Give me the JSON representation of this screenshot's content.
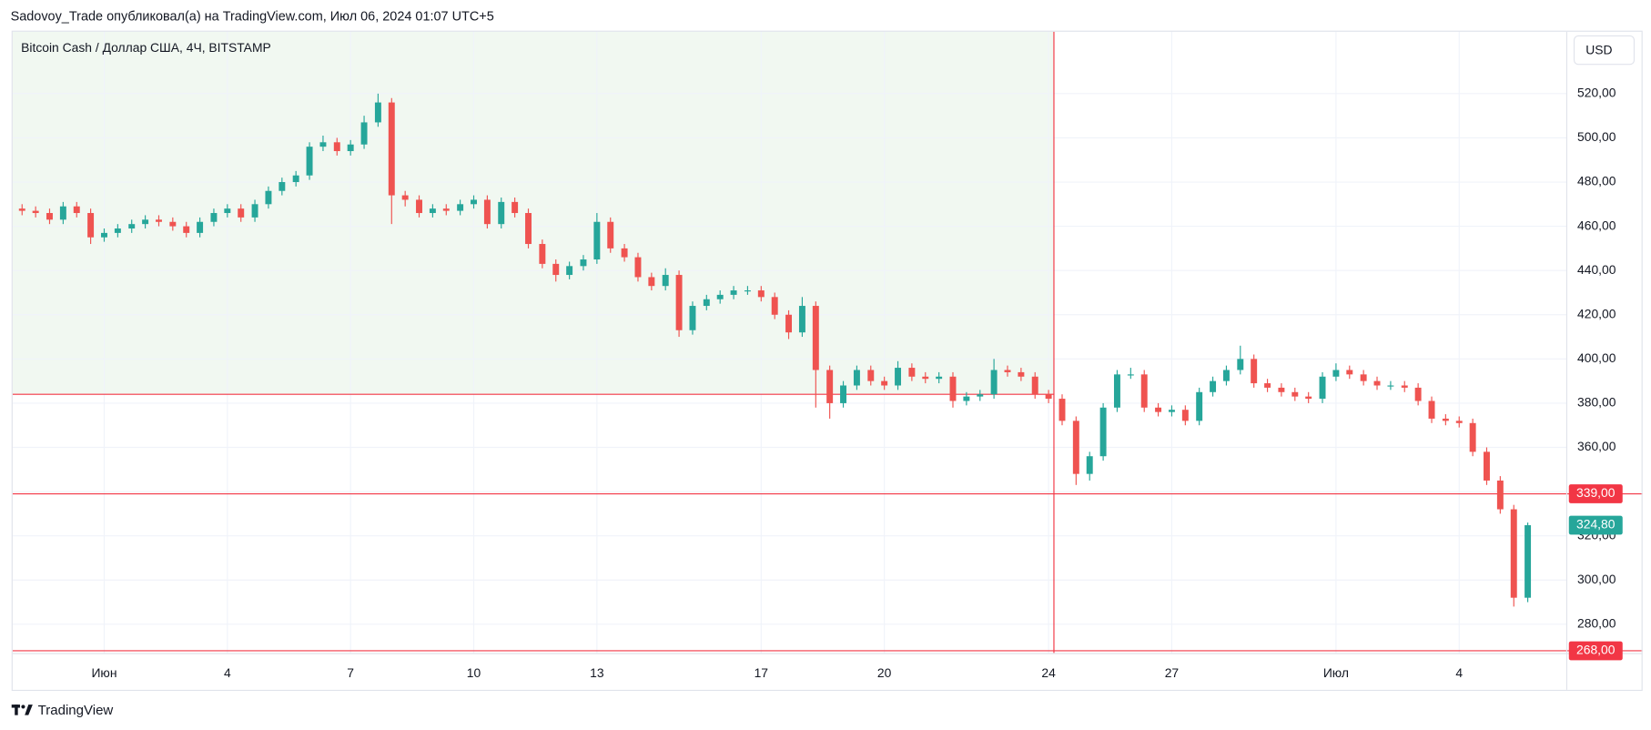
{
  "header": {
    "publisher": "Sadovoy_Trade опубликовал(а) на TradingView.com, Июл 06, 2024 01:07 UTC+5",
    "symbol": "Bitcoin Cash / Доллар США, 4Ч, BITSTAMP",
    "currency": "USD",
    "brand": "TradingView"
  },
  "chart_data": {
    "type": "candlestick",
    "up_color": "#26a69a",
    "down_color": "#ef5350",
    "grid": true,
    "xlim": [
      -1.23,
      36.62
    ],
    "ylim": [
      267,
      548
    ],
    "xticks": [
      {
        "value": 1,
        "label": "Июн"
      },
      4,
      7,
      10,
      13,
      17,
      20,
      24,
      27,
      {
        "value": 31,
        "label": "Июл"
      },
      {
        "value": 34,
        "label": "4"
      }
    ],
    "yticks": [
      {
        "value": 280,
        "label": "280,00"
      },
      {
        "value": 300,
        "label": "300,00"
      },
      {
        "value": 320,
        "label": "320,00"
      },
      {
        "value": 340,
        "label": "340,00"
      },
      {
        "value": 360,
        "label": "360,00"
      },
      {
        "value": 380,
        "label": "380,00"
      },
      {
        "value": 400,
        "label": "400,00"
      },
      {
        "value": 420,
        "label": "420,00"
      },
      {
        "value": 440,
        "label": "440,00"
      },
      {
        "value": 460,
        "label": "460,00"
      },
      {
        "value": 480,
        "label": "480,00"
      },
      {
        "value": 500,
        "label": "500,00"
      },
      {
        "value": 520,
        "label": "520,00"
      }
    ],
    "x": [
      -1,
      -0.67,
      -0.33,
      0,
      0.33,
      0.67,
      1,
      1.33,
      1.67,
      2,
      2.33,
      2.67,
      3,
      3.33,
      3.67,
      4,
      4.33,
      4.67,
      5,
      5.33,
      5.67,
      6,
      6.33,
      6.67,
      7,
      7.33,
      7.67,
      8,
      8.33,
      8.67,
      9,
      9.33,
      9.67,
      10,
      10.33,
      10.67,
      11,
      11.33,
      11.67,
      12,
      12.33,
      12.67,
      13,
      13.33,
      13.67,
      14,
      14.33,
      14.67,
      15,
      15.33,
      15.67,
      16,
      16.33,
      16.67,
      17,
      17.33,
      17.67,
      18,
      18.33,
      18.67,
      19,
      19.33,
      19.67,
      20,
      20.33,
      20.67,
      21,
      21.33,
      21.67,
      22,
      22.33,
      22.67,
      23,
      23.33,
      23.67,
      24,
      24.33,
      24.67,
      25,
      25.33,
      25.67,
      26,
      26.33,
      26.67,
      27,
      27.33,
      27.67,
      28,
      28.33,
      28.67,
      29,
      29.33,
      29.67,
      30,
      30.33,
      30.67,
      31,
      31.33,
      31.67,
      32,
      32.33,
      32.67,
      33,
      33.33,
      33.67,
      34,
      34.33,
      34.67,
      35,
      35.33,
      35.67
    ],
    "open": [
      468,
      467,
      466,
      463,
      469,
      466,
      455,
      457,
      459,
      461,
      463,
      462,
      460,
      457,
      462,
      466,
      468,
      464,
      470,
      476,
      480,
      483,
      496,
      498,
      494,
      497,
      507,
      516,
      474,
      472,
      466,
      468,
      467,
      470,
      472,
      461,
      471,
      466,
      452,
      443,
      438,
      442,
      445,
      462,
      450,
      446,
      437,
      433,
      438,
      413,
      424,
      427,
      429,
      431,
      431,
      428,
      420,
      412,
      424,
      395,
      380,
      388,
      395,
      390,
      388,
      396,
      392,
      391,
      392,
      381,
      383,
      384,
      395,
      394,
      392,
      384,
      382,
      372,
      348,
      356,
      378,
      393,
      393,
      378,
      376,
      377,
      372,
      385,
      390,
      395,
      400,
      389,
      387,
      385,
      383,
      382,
      392,
      395,
      393,
      390,
      388,
      388,
      387,
      381,
      373,
      372,
      371,
      358,
      345,
      332,
      292
    ],
    "high": [
      470,
      469,
      468,
      471,
      471,
      468,
      459,
      461,
      463,
      465,
      465,
      464,
      462,
      464,
      468,
      470,
      470,
      472,
      478,
      482,
      485,
      498,
      501,
      500,
      499,
      510,
      520,
      518,
      476,
      474,
      470,
      470,
      472,
      474,
      474,
      473,
      473,
      468,
      454,
      445,
      444,
      447,
      466,
      464,
      452,
      448,
      439,
      441,
      440,
      426,
      429,
      431,
      433,
      433,
      433,
      430,
      422,
      428,
      426,
      397,
      390,
      397,
      397,
      392,
      399,
      398,
      394,
      394,
      394,
      385,
      386,
      400,
      397,
      396,
      394,
      386,
      384,
      374,
      358,
      380,
      395,
      396,
      395,
      380,
      379,
      379,
      387,
      392,
      397,
      406,
      402,
      391,
      389,
      387,
      385,
      394,
      398,
      397,
      395,
      392,
      390,
      390,
      389,
      383,
      375,
      374,
      373,
      360,
      347,
      334,
      326
    ],
    "low": [
      465,
      464,
      461,
      461,
      464,
      452,
      453,
      455,
      457,
      459,
      460,
      458,
      455,
      455,
      460,
      464,
      462,
      462,
      468,
      474,
      478,
      481,
      494,
      492,
      492,
      495,
      505,
      461,
      469,
      464,
      464,
      465,
      465,
      468,
      459,
      459,
      464,
      450,
      441,
      435,
      436,
      440,
      443,
      448,
      444,
      435,
      431,
      431,
      410,
      411,
      422,
      425,
      427,
      429,
      426,
      418,
      409,
      410,
      378,
      373,
      378,
      386,
      388,
      386,
      386,
      390,
      389,
      389,
      378,
      379,
      381,
      382,
      392,
      390,
      382,
      380,
      370,
      343,
      345,
      354,
      376,
      391,
      376,
      374,
      374,
      370,
      370,
      383,
      388,
      393,
      387,
      385,
      383,
      381,
      380,
      380,
      390,
      391,
      388,
      386,
      386,
      385,
      379,
      371,
      370,
      369,
      356,
      343,
      330,
      288,
      290
    ],
    "close": [
      467,
      466,
      463,
      469,
      466,
      455,
      457,
      459,
      461,
      463,
      462,
      460,
      457,
      462,
      466,
      468,
      464,
      470,
      476,
      480,
      483,
      496,
      498,
      494,
      497,
      507,
      516,
      474,
      472,
      466,
      468,
      467,
      470,
      472,
      461,
      471,
      466,
      452,
      443,
      438,
      442,
      445,
      462,
      450,
      446,
      437,
      433,
      438,
      413,
      424,
      427,
      429,
      431,
      431,
      428,
      420,
      412,
      424,
      395,
      380,
      388,
      395,
      390,
      388,
      396,
      392,
      391,
      392,
      381,
      383,
      384,
      395,
      394,
      392,
      384,
      382,
      372,
      348,
      356,
      378,
      393,
      393,
      378,
      376,
      377,
      372,
      385,
      390,
      395,
      400,
      389,
      387,
      385,
      383,
      382,
      392,
      395,
      393,
      390,
      388,
      388,
      387,
      381,
      373,
      372,
      371,
      358,
      345,
      332,
      292,
      324.8
    ],
    "zone": {
      "x_end": 24.13,
      "y_bottom": 384,
      "color": "#f1f8f1",
      "line_color": "#f23645"
    },
    "levels": {
      "values": [
        339,
        268
      ],
      "value_labels": [
        "339,00",
        "268,00"
      ],
      "color": "#f23645"
    },
    "last_price": {
      "value": 324.8,
      "label": "324,80",
      "color": "#26a69a"
    }
  }
}
